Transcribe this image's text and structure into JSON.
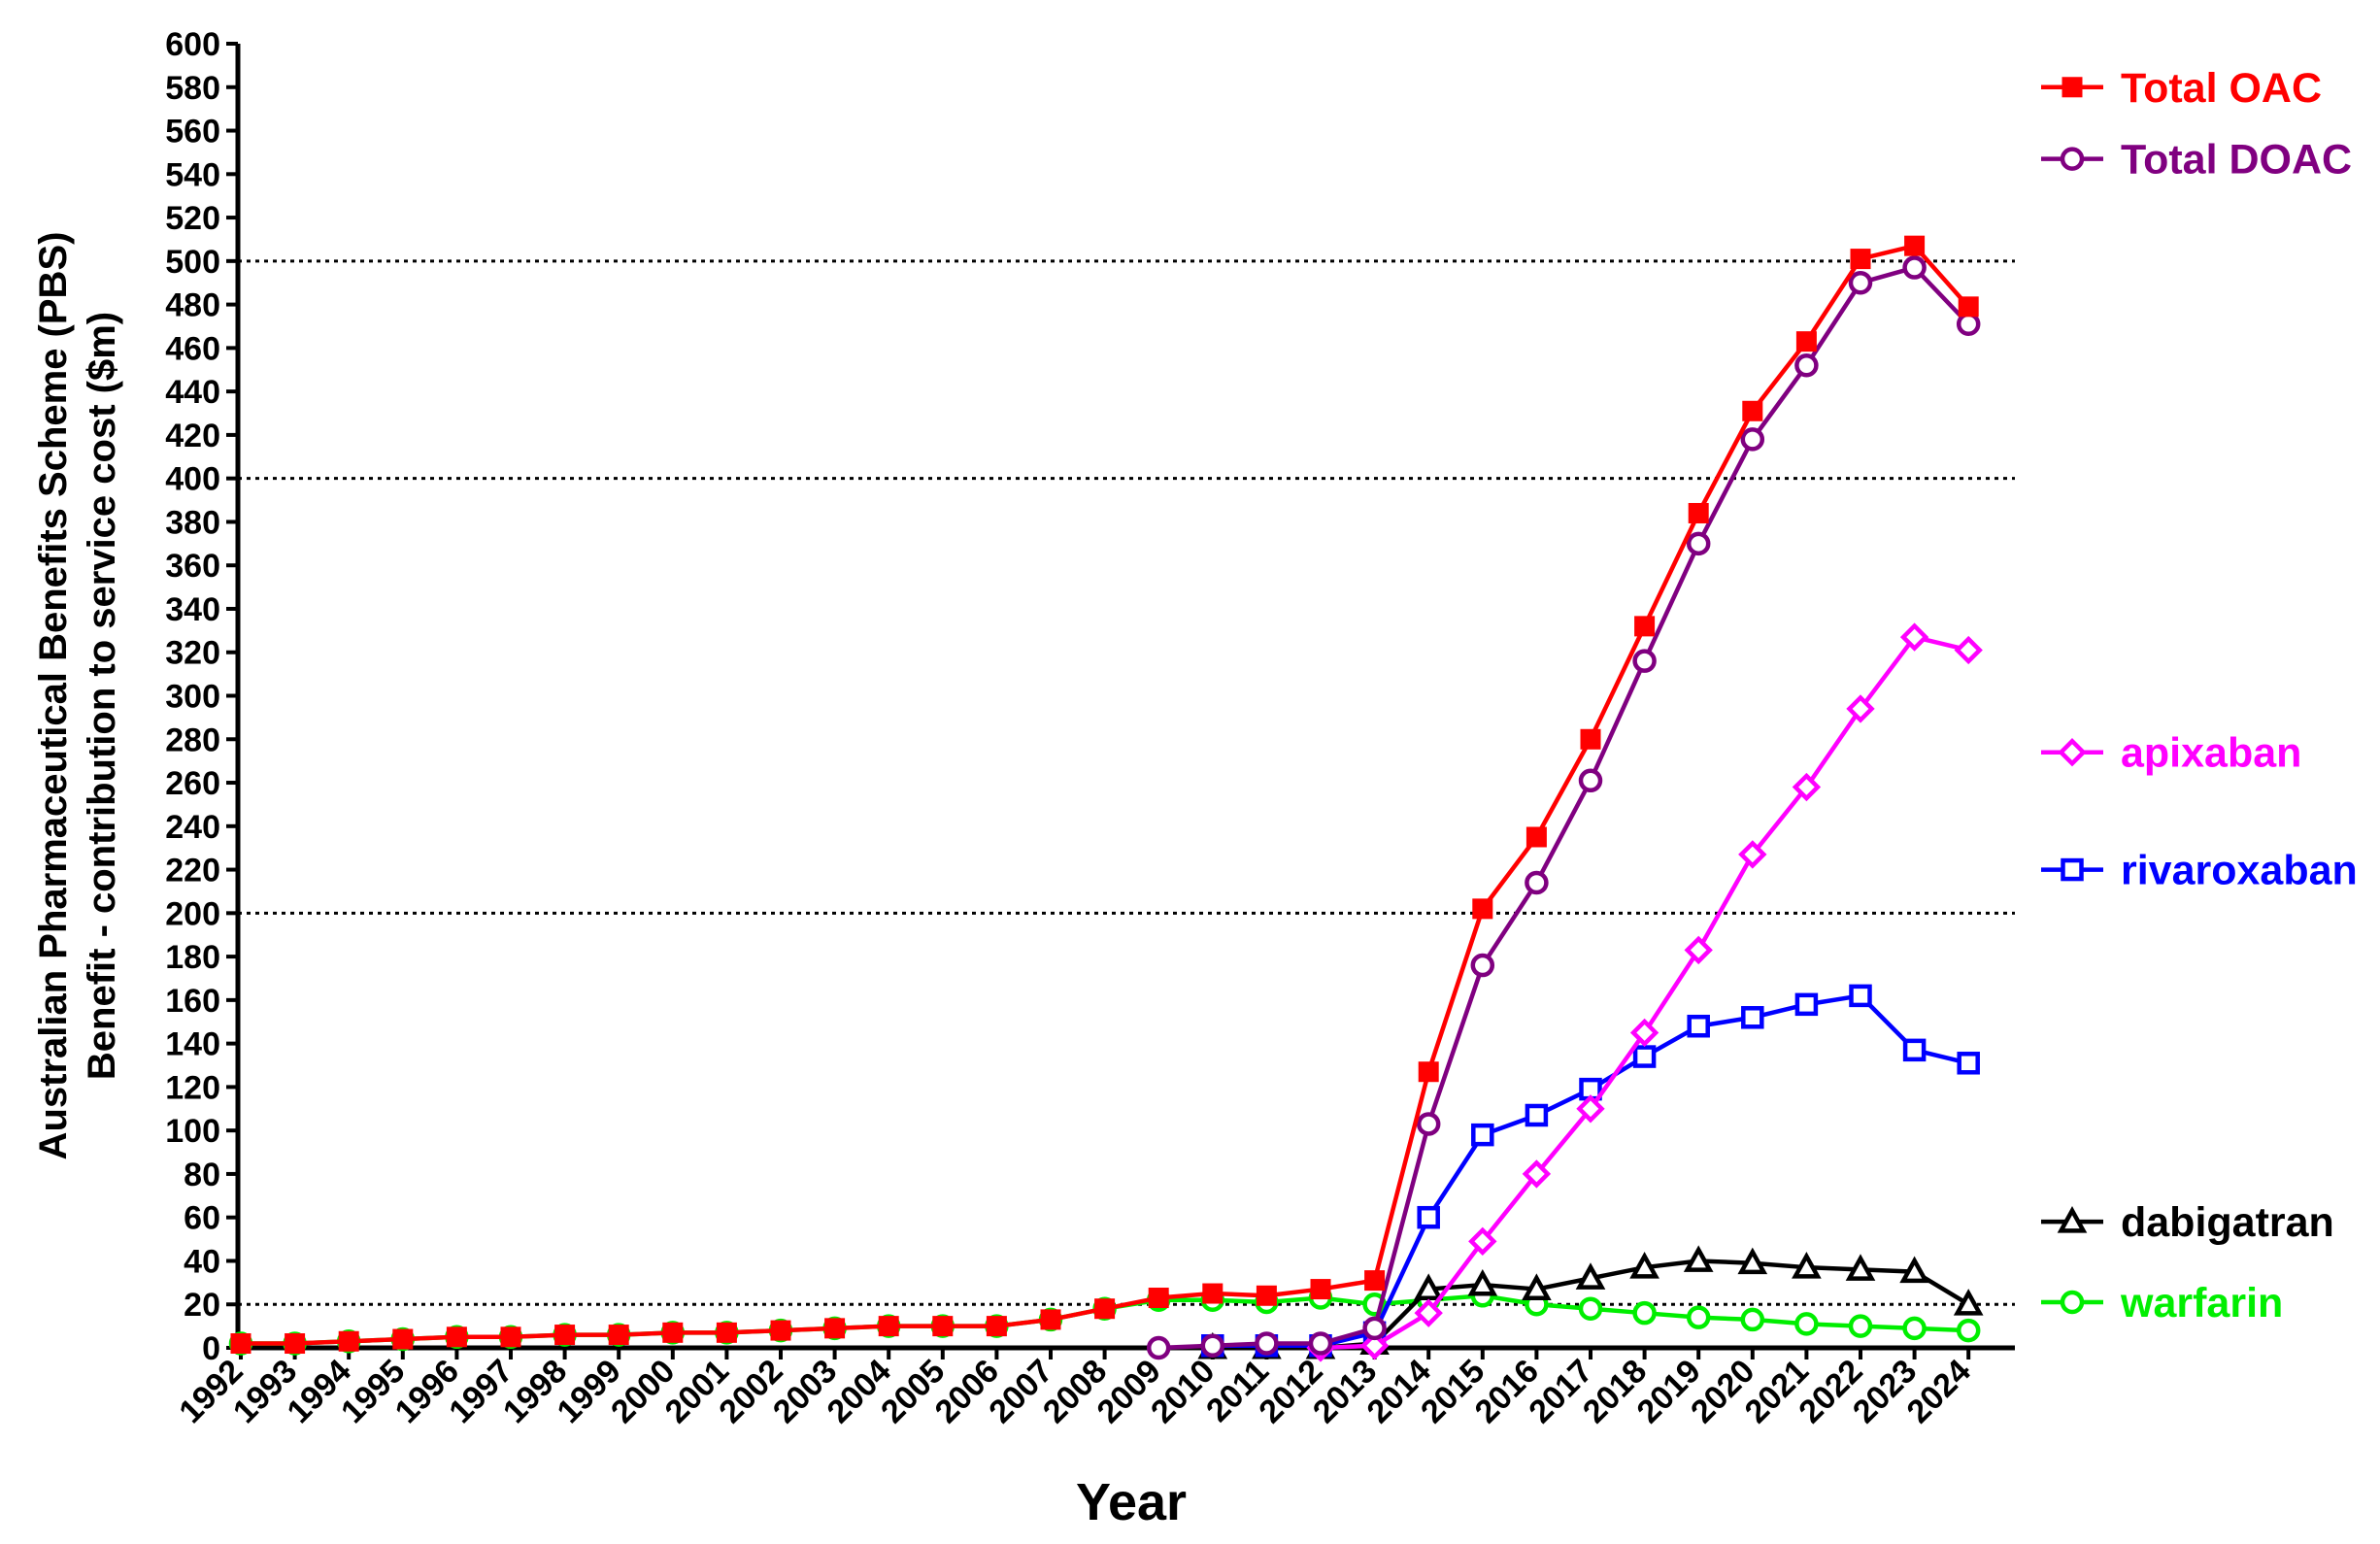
{
  "chart_data": {
    "type": "line",
    "title": "",
    "xlabel": "Year",
    "ylabel_lines": [
      "Australian Pharmaceutical Benefits Scheme (PBS)",
      "Benefit - contribution to service cost ($m)"
    ],
    "ylim": [
      0,
      600
    ],
    "y_tick_step": 20,
    "y_ticks": [
      "0",
      "20",
      "40",
      "60",
      "80",
      "100",
      "120",
      "140",
      "160",
      "180",
      "200",
      "220",
      "240",
      "260",
      "280",
      "300",
      "320",
      "340",
      "360",
      "380",
      "400",
      "420",
      "440",
      "460",
      "480",
      "500",
      "520",
      "540",
      "560",
      "580",
      "600"
    ],
    "reference_lines": [
      20,
      200,
      400,
      500
    ],
    "x": [
      "1992",
      "1993",
      "1994",
      "1995",
      "1996",
      "1997",
      "1998",
      "1999",
      "2000",
      "2001",
      "2002",
      "2003",
      "2004",
      "2005",
      "2006",
      "2007",
      "2008",
      "2009",
      "2010",
      "2011",
      "2012",
      "2013",
      "2014",
      "2015",
      "2016",
      "2017",
      "2018",
      "2019",
      "2020",
      "2021",
      "2022",
      "2023",
      "2024"
    ],
    "legend_placement": "right",
    "series": [
      {
        "name": "warfarin",
        "color": "#00ee00",
        "marker": "open-circle",
        "values": [
          2,
          2,
          3,
          4,
          5,
          5,
          6,
          6,
          7,
          7,
          8,
          9,
          10,
          10,
          10,
          13,
          18,
          22,
          22,
          21,
          23,
          20,
          22,
          24,
          20,
          18,
          16,
          14,
          13,
          11,
          10,
          9,
          8
        ]
      },
      {
        "name": "dabigatran",
        "color": "#000000",
        "marker": "open-triangle",
        "values": [
          null,
          null,
          null,
          null,
          null,
          null,
          null,
          null,
          null,
          null,
          null,
          null,
          null,
          null,
          null,
          null,
          null,
          null,
          0,
          0,
          0,
          2,
          27,
          29,
          27,
          32,
          37,
          40,
          39,
          37,
          36,
          35,
          20
        ]
      },
      {
        "name": "rivaroxaban",
        "color": "#0000ff",
        "marker": "open-square",
        "values": [
          null,
          null,
          null,
          null,
          null,
          null,
          null,
          null,
          null,
          null,
          null,
          null,
          null,
          null,
          null,
          null,
          null,
          null,
          1,
          1,
          1,
          7,
          60,
          98,
          107,
          119,
          134,
          148,
          152,
          158,
          162,
          137,
          131
        ]
      },
      {
        "name": "apixaban",
        "color": "#ff00ff",
        "marker": "open-diamond",
        "values": [
          null,
          null,
          null,
          null,
          null,
          null,
          null,
          null,
          null,
          null,
          null,
          null,
          null,
          null,
          null,
          null,
          null,
          null,
          null,
          null,
          0,
          1,
          16,
          49,
          80,
          110,
          145,
          183,
          227,
          258,
          294,
          327,
          321
        ]
      },
      {
        "name": "Total DOAC",
        "color": "#800080",
        "marker": "open-circle",
        "values": [
          null,
          null,
          null,
          null,
          null,
          null,
          null,
          null,
          null,
          null,
          null,
          null,
          null,
          null,
          null,
          null,
          null,
          0,
          1,
          2,
          2,
          9,
          103,
          176,
          214,
          261,
          316,
          370,
          418,
          452,
          490,
          497,
          471
        ]
      },
      {
        "name": "Total OAC",
        "color": "#ff0000",
        "marker": "filled-square",
        "values": [
          2,
          2,
          3,
          4,
          5,
          5,
          6,
          6,
          7,
          7,
          8,
          9,
          10,
          10,
          10,
          13,
          18,
          23,
          25,
          24,
          27,
          31,
          127,
          202,
          235,
          280,
          332,
          384,
          431,
          463,
          501,
          507,
          479
        ]
      }
    ],
    "legend": [
      {
        "name": "Total OAC",
        "color": "#ff0000",
        "marker": "filled-square",
        "anchor_value": 580
      },
      {
        "name": "Total DOAC",
        "color": "#800080",
        "marker": "open-circle",
        "anchor_value": 547
      },
      {
        "name": "apixaban",
        "color": "#ff00ff",
        "marker": "open-diamond",
        "anchor_value": 274
      },
      {
        "name": "rivaroxaban",
        "color": "#0000ff",
        "marker": "open-square",
        "anchor_value": 220
      },
      {
        "name": "dabigatran",
        "color": "#000000",
        "marker": "open-triangle",
        "anchor_value": 58
      },
      {
        "name": "warfarin",
        "color": "#00ee00",
        "marker": "open-circle",
        "anchor_value": 21
      }
    ]
  }
}
